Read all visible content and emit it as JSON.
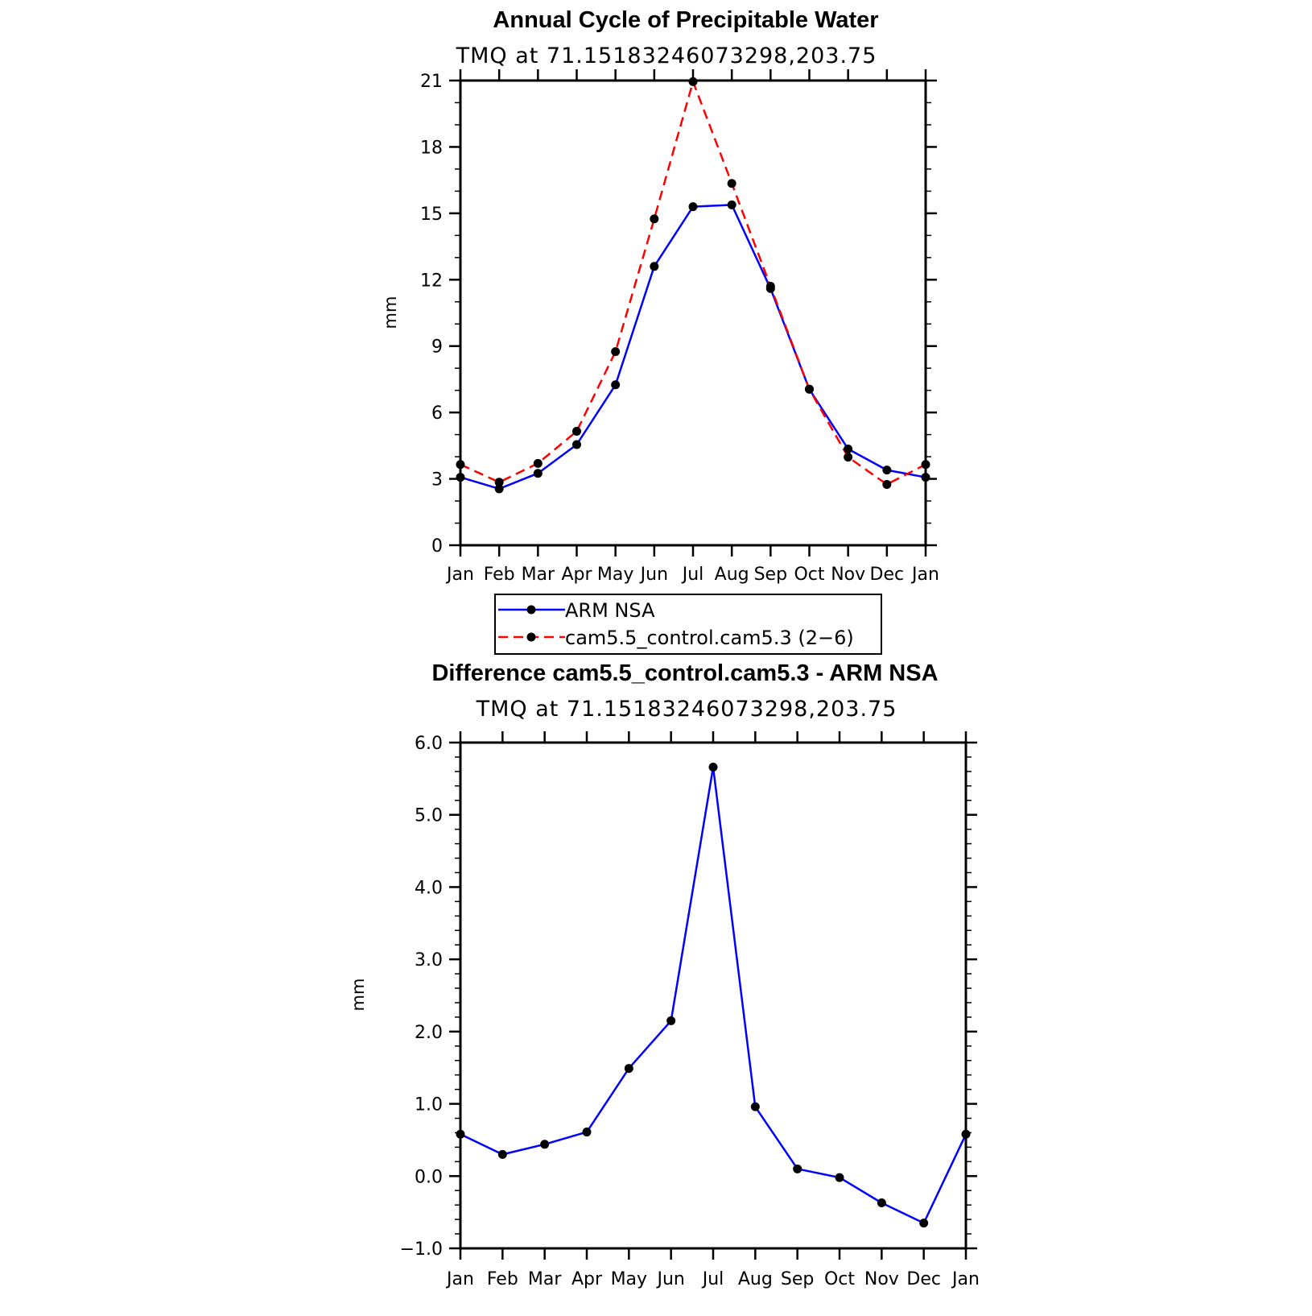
{
  "chart_data": [
    {
      "type": "line",
      "title": "Annual Cycle of Precipitable Water",
      "subtitle": "TMQ at 71.15183246073298,203.75",
      "xlabel": "",
      "ylabel": "mm",
      "categories": [
        "Jan",
        "Feb",
        "Mar",
        "Apr",
        "May",
        "Jun",
        "Jul",
        "Aug",
        "Sep",
        "Oct",
        "Nov",
        "Dec",
        "Jan"
      ],
      "ylim": [
        0,
        21
      ],
      "yticks": [
        0,
        3,
        6,
        9,
        12,
        15,
        18,
        21
      ],
      "ytick_labels": [
        "0",
        "3",
        "6",
        "9",
        "12",
        "15",
        "18",
        "21"
      ],
      "series": [
        {
          "name": "ARM NSA",
          "color": "#0000ff",
          "dash": "solid",
          "values": [
            3.07,
            2.55,
            3.25,
            4.55,
            7.25,
            12.6,
            15.3,
            15.38,
            11.6,
            7.05,
            4.35,
            3.4,
            3.07
          ]
        },
        {
          "name": "cam5.5_control.cam5.3 (2−6)",
          "color": "#ff0000",
          "dash": "dashed",
          "values": [
            3.65,
            2.85,
            3.7,
            5.15,
            8.75,
            14.75,
            20.95,
            16.35,
            11.7,
            7.05,
            3.98,
            2.75,
            3.65
          ]
        }
      ],
      "legend": {
        "position": "bottom",
        "entries": [
          "ARM NSA",
          "cam5.5_control.cam5.3 (2−6)"
        ]
      }
    },
    {
      "type": "line",
      "title": "Difference cam5.5_control.cam5.3 - ARM NSA",
      "subtitle": "TMQ at 71.15183246073298,203.75",
      "xlabel": "",
      "ylabel": "mm",
      "categories": [
        "Jan",
        "Feb",
        "Mar",
        "Apr",
        "May",
        "Jun",
        "Jul",
        "Aug",
        "Sep",
        "Oct",
        "Nov",
        "Dec",
        "Jan"
      ],
      "ylim": [
        -1.0,
        6.0
      ],
      "yticks": [
        -1,
        0,
        1,
        2,
        3,
        4,
        5,
        6
      ],
      "ytick_labels": [
        "−1.0",
        "0.0",
        "1.0",
        "2.0",
        "3.0",
        "4.0",
        "5.0",
        "6.0"
      ],
      "series": [
        {
          "color": "#0000ff",
          "dash": "solid",
          "values": [
            0.58,
            0.3,
            0.44,
            0.61,
            1.49,
            2.15,
            5.66,
            0.96,
            0.1,
            -0.02,
            -0.37,
            -0.65,
            0.58
          ]
        }
      ]
    }
  ]
}
